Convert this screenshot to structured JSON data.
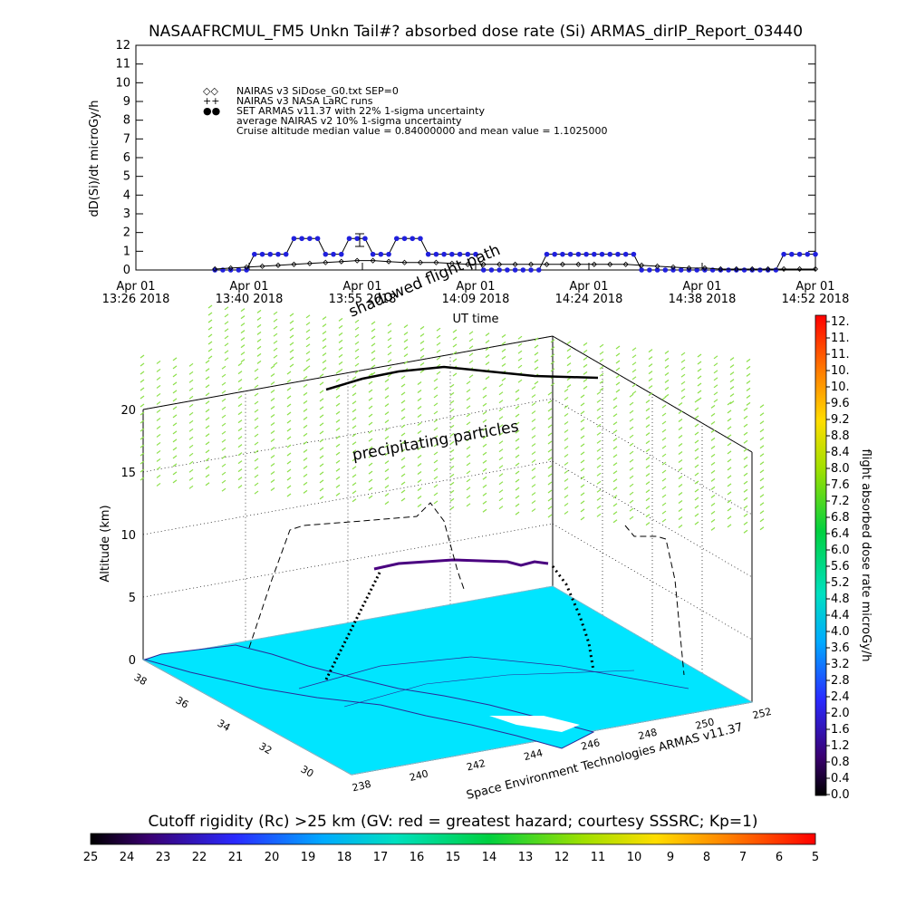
{
  "title": "NASAAFRCMUL_FM5 Unkn Tail#? absorbed dose rate (Si) ARMAS_dirIP_Report_03440",
  "top_chart": {
    "ylabel": "dD(Si)/dt microGy/h",
    "xlabel": "UT time",
    "y_ticks": [
      "0",
      "1",
      "2",
      "3",
      "4",
      "5",
      "6",
      "7",
      "8",
      "9",
      "10",
      "11",
      "12"
    ],
    "x_ticks": [
      {
        "line1": "Apr 01",
        "line2": "13:26 2018"
      },
      {
        "line1": "Apr 01",
        "line2": "13:40 2018"
      },
      {
        "line1": "Apr 01",
        "line2": "13:55 2018"
      },
      {
        "line1": "Apr 01",
        "line2": "14:09 2018"
      },
      {
        "line1": "Apr 01",
        "line2": "14:24 2018"
      },
      {
        "line1": "Apr 01",
        "line2": "14:38 2018"
      },
      {
        "line1": "Apr 01",
        "line2": "14:52 2018"
      }
    ],
    "legend": [
      {
        "symbol": "◇◇",
        "text": "NAIRAS v3 SiDose_G0.txt SEP=0"
      },
      {
        "symbol": "++",
        "text": "NAIRAS v3 NASA LaRC runs"
      },
      {
        "symbol": "●●",
        "text": "SET ARMAS v11.37 with 22% 1-sigma uncertainty"
      },
      {
        "symbol": "",
        "text": "average NAIRAS v2 10% 1-sigma uncertainty"
      },
      {
        "symbol": "",
        "text": "Cruise altitude median value = 0.84000000 and mean value = 1.1025000"
      }
    ]
  },
  "chart_data": [
    {
      "type": "line",
      "x_unit": "minutes UT after 13:26",
      "ylim": [
        0,
        12
      ],
      "xlim": [
        0,
        86
      ],
      "series": [
        {
          "name": "SET ARMAS v11.37 with 22% 1-sigma uncertainty",
          "color": "#2020dd",
          "x": [
            10,
            11,
            12,
            13,
            14,
            15,
            16,
            17,
            18,
            19,
            20,
            21,
            22,
            23,
            24,
            25,
            26,
            27,
            28,
            29,
            30,
            31,
            32,
            33,
            34,
            35,
            36,
            37,
            38,
            39,
            40,
            41,
            42,
            43,
            44,
            45,
            46,
            47,
            48,
            49,
            50,
            51,
            52,
            53,
            54,
            55,
            56,
            57,
            58,
            59,
            60,
            61,
            62,
            63,
            64,
            65,
            66,
            67,
            68,
            69,
            70,
            71,
            72,
            73,
            74,
            75,
            76,
            77,
            78,
            79,
            80,
            81,
            82,
            83,
            84,
            85,
            86
          ],
          "y": [
            0,
            0,
            0,
            0,
            0,
            0.84,
            0.84,
            0.84,
            0.84,
            0.84,
            1.68,
            1.68,
            1.68,
            1.68,
            0.84,
            0.84,
            0.84,
            1.68,
            1.68,
            1.68,
            0.84,
            0.84,
            0.84,
            1.68,
            1.68,
            1.68,
            1.68,
            0.84,
            0.84,
            0.84,
            0.84,
            0.84,
            0.84,
            0.84,
            0,
            0,
            0,
            0,
            0,
            0,
            0,
            0,
            0.84,
            0.84,
            0.84,
            0.84,
            0.84,
            0.84,
            0.84,
            0.84,
            0.84,
            0.84,
            0.84,
            0.84,
            0,
            0,
            0,
            0,
            0,
            0,
            0,
            0,
            0,
            0,
            0,
            0,
            0,
            0,
            0,
            0,
            0,
            0,
            0.84,
            0.84,
            0.84,
            0.84,
            0.84
          ]
        },
        {
          "name": "NAIRAS v3 SiDose_G0.txt SEP=0",
          "color": "#000000",
          "x": [
            10,
            12,
            14,
            16,
            18,
            20,
            22,
            24,
            26,
            28,
            30,
            32,
            34,
            36,
            38,
            40,
            42,
            44,
            46,
            48,
            50,
            52,
            54,
            56,
            58,
            60,
            62,
            64,
            66,
            68,
            70,
            72,
            74,
            76,
            78,
            80,
            82,
            84,
            86
          ],
          "y": [
            0.05,
            0.1,
            0.15,
            0.2,
            0.25,
            0.3,
            0.35,
            0.4,
            0.45,
            0.5,
            0.5,
            0.45,
            0.4,
            0.4,
            0.4,
            0.35,
            0.3,
            0.3,
            0.3,
            0.3,
            0.3,
            0.3,
            0.3,
            0.3,
            0.3,
            0.3,
            0.3,
            0.25,
            0.2,
            0.15,
            0.1,
            0.1,
            0.05,
            0.05,
            0.05,
            0.05,
            0.05,
            0.05,
            0.05
          ]
        }
      ]
    },
    {
      "type": "scatter",
      "zlabel": "Altitude (km)",
      "zlim": [
        0,
        20
      ],
      "z_ticks": [
        "0",
        "5",
        "10",
        "15",
        "20"
      ],
      "lat_ticks": [
        "38",
        "36",
        "34",
        "32",
        "30"
      ],
      "lon_ticks": [
        "238",
        "240",
        "242",
        "244",
        "246",
        "248",
        "250",
        "252"
      ],
      "annotations": [
        "shadowed flight path",
        "precipitating particles"
      ],
      "credit": "Space Environment Technologies ARMAS v11.37"
    }
  ],
  "colorbar_right": {
    "label": "flight absorbed dose rate microGy/h",
    "ticks": [
      "12.",
      "11.",
      "11.",
      "10.",
      "10.",
      "9.6",
      "9.2",
      "8.8",
      "8.4",
      "8.0",
      "7.6",
      "7.2",
      "6.8",
      "6.4",
      "6.0",
      "5.6",
      "5.2",
      "4.8",
      "4.4",
      "4.0",
      "3.6",
      "3.2",
      "2.8",
      "2.4",
      "2.0",
      "1.6",
      "1.2",
      "0.8",
      "0.4",
      "0.0"
    ]
  },
  "colorbar_bottom": {
    "label": "Cutoff rigidity (Rc) >25 km (GV: red = greatest hazard; courtesy SSSRC; Kp=1)",
    "ticks": [
      "25",
      "24",
      "23",
      "22",
      "21",
      "20",
      "19",
      "18",
      "17",
      "16",
      "15",
      "14",
      "13",
      "12",
      "11",
      "10",
      "9",
      "8",
      "7",
      "6",
      "5"
    ]
  }
}
